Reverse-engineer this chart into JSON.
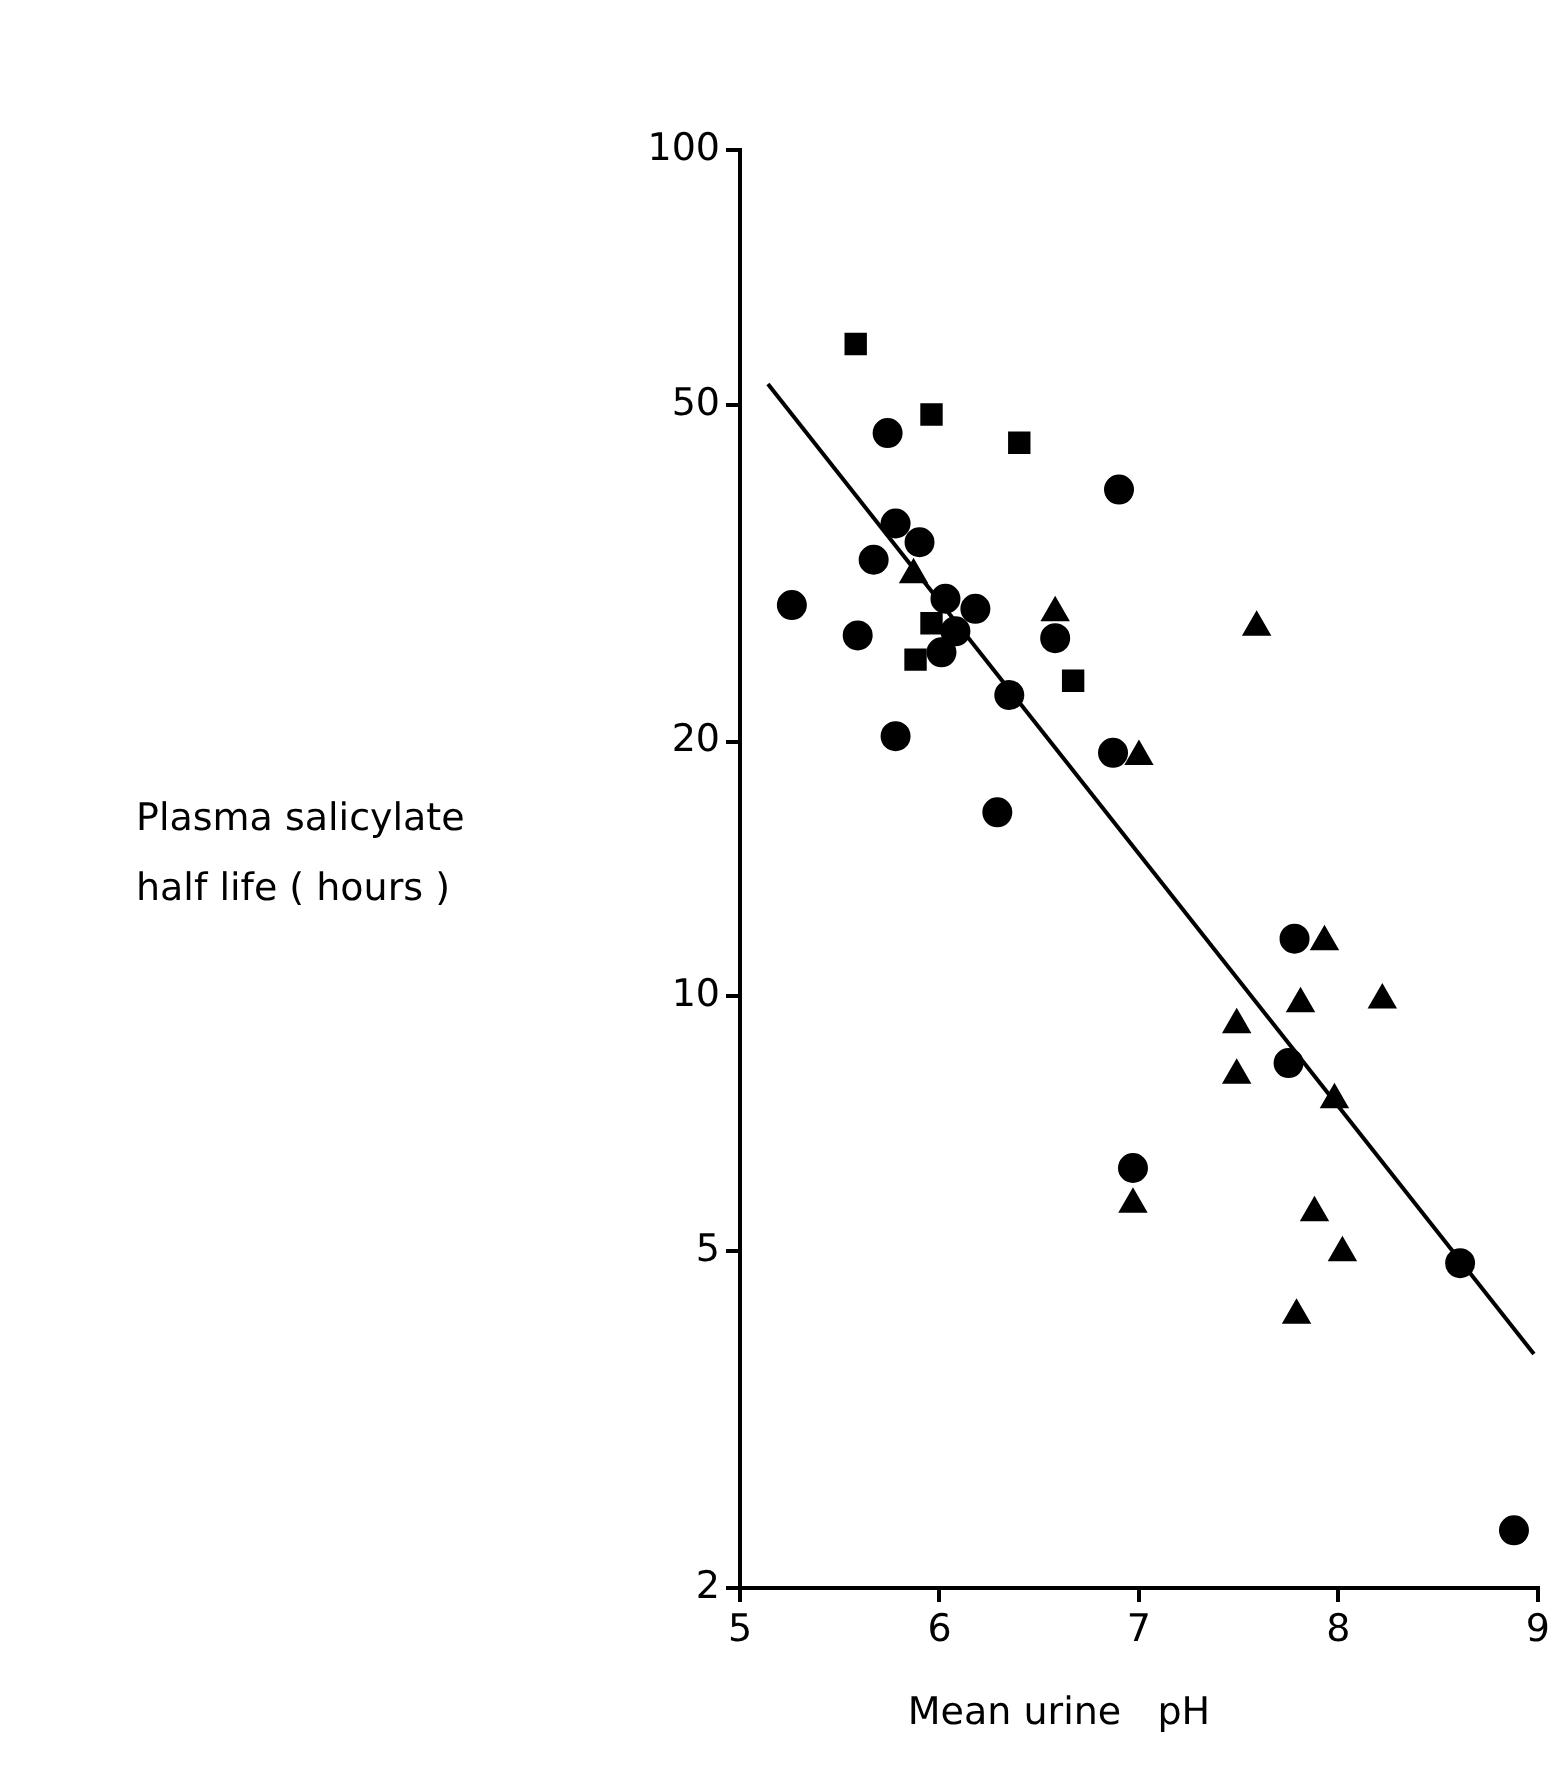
{
  "chart_data": {
    "type": "scatter",
    "xlabel": "Mean urine   pH",
    "ylabel": "Plasma salicylate\nhalf life ( hours )",
    "log": "y",
    "xlim": [
      5,
      9
    ],
    "ylim": [
      2,
      100
    ],
    "xticks": [
      5,
      6,
      7,
      8,
      9
    ],
    "yticks": [
      2,
      5,
      10,
      20,
      50,
      100
    ],
    "grid": false,
    "legend": false,
    "series": [
      {
        "marker": "square",
        "color": "#000000",
        "x": [
          5.58,
          5.96,
          6.4,
          5.96,
          5.88,
          6.67
        ],
        "values": [
          59,
          48.7,
          45.1,
          27.6,
          25.0,
          23.6
        ]
      },
      {
        "marker": "circle",
        "color": "#000000",
        "x": [
          5.74,
          6.9,
          5.78,
          5.9,
          5.67,
          5.26,
          5.59,
          6.03,
          6.18,
          6.08,
          6.01,
          6.58,
          6.35,
          5.78,
          6.29
        ],
        "values": [
          46.3,
          39.7,
          36.2,
          34.4,
          32.8,
          29.0,
          26.7,
          29.5,
          28.7,
          27.0,
          25.5,
          26.5,
          22.7,
          20.3,
          16.5
        ]
      },
      {
        "marker": "triangle",
        "color": "#000000",
        "x": [
          5.87,
          6.58,
          7.0,
          7.59,
          7.93,
          7.81,
          8.22,
          7.49,
          7.49,
          7.98,
          6.97,
          7.88,
          8.02,
          7.79
        ],
        "values": [
          31.5,
          28.4,
          19.2,
          27.3,
          11.6,
          9.8,
          9.9,
          9.26,
          8.07,
          7.55,
          5.68,
          5.55,
          4.98,
          4.2
        ]
      },
      {
        "marker": "circle",
        "color": "#000000",
        "x": [
          6.87,
          7.78,
          7.75,
          6.97,
          8.61,
          8.88
        ],
        "values": [
          19.4,
          11.7,
          8.34,
          6.27,
          4.84,
          2.34
        ]
      },
      {
        "type": "line",
        "marker": "none",
        "line_style": "solid",
        "color": "#000000",
        "x": [
          5.14,
          8.98
        ],
        "values": [
          52.9,
          3.78
        ]
      }
    ]
  }
}
